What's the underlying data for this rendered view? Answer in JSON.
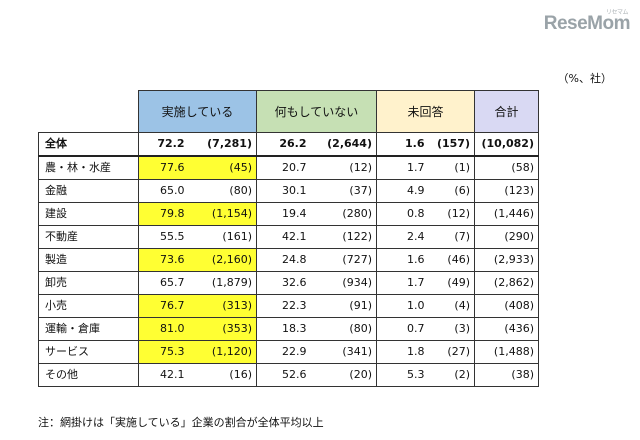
{
  "logo": {
    "main": "ReseMom",
    "sub": "リセマム"
  },
  "unit": "（%、社）",
  "headers": {
    "jisshi": "実施している",
    "nanimo": "何もしていない",
    "mikaito": "未回答",
    "goukei": "合計"
  },
  "rows": [
    {
      "label": "全体",
      "jisshi_pct": "72.2",
      "jisshi_n": "(7,281)",
      "nanimo_pct": "26.2",
      "nanimo_n": "(2,644)",
      "mikaito_pct": "1.6",
      "mikaito_n": "(157)",
      "total": "(10,082)",
      "highlight": false,
      "is_total": true
    },
    {
      "label": "農・林・水産",
      "jisshi_pct": "77.6",
      "jisshi_n": "(45)",
      "nanimo_pct": "20.7",
      "nanimo_n": "(12)",
      "mikaito_pct": "1.7",
      "mikaito_n": "(1)",
      "total": "(58)",
      "highlight": true
    },
    {
      "label": "金融",
      "jisshi_pct": "65.0",
      "jisshi_n": "(80)",
      "nanimo_pct": "30.1",
      "nanimo_n": "(37)",
      "mikaito_pct": "4.9",
      "mikaito_n": "(6)",
      "total": "(123)",
      "highlight": false
    },
    {
      "label": "建設",
      "jisshi_pct": "79.8",
      "jisshi_n": "(1,154)",
      "nanimo_pct": "19.4",
      "nanimo_n": "(280)",
      "mikaito_pct": "0.8",
      "mikaito_n": "(12)",
      "total": "(1,446)",
      "highlight": true
    },
    {
      "label": "不動産",
      "jisshi_pct": "55.5",
      "jisshi_n": "(161)",
      "nanimo_pct": "42.1",
      "nanimo_n": "(122)",
      "mikaito_pct": "2.4",
      "mikaito_n": "(7)",
      "total": "(290)",
      "highlight": false
    },
    {
      "label": "製造",
      "jisshi_pct": "73.6",
      "jisshi_n": "(2,160)",
      "nanimo_pct": "24.8",
      "nanimo_n": "(727)",
      "mikaito_pct": "1.6",
      "mikaito_n": "(46)",
      "total": "(2,933)",
      "highlight": true
    },
    {
      "label": "卸売",
      "jisshi_pct": "65.7",
      "jisshi_n": "(1,879)",
      "nanimo_pct": "32.6",
      "nanimo_n": "(934)",
      "mikaito_pct": "1.7",
      "mikaito_n": "(49)",
      "total": "(2,862)",
      "highlight": false
    },
    {
      "label": "小売",
      "jisshi_pct": "76.7",
      "jisshi_n": "(313)",
      "nanimo_pct": "22.3",
      "nanimo_n": "(91)",
      "mikaito_pct": "1.0",
      "mikaito_n": "(4)",
      "total": "(408)",
      "highlight": true
    },
    {
      "label": "運輸・倉庫",
      "jisshi_pct": "81.0",
      "jisshi_n": "(353)",
      "nanimo_pct": "18.3",
      "nanimo_n": "(80)",
      "mikaito_pct": "0.7",
      "mikaito_n": "(3)",
      "total": "(436)",
      "highlight": true
    },
    {
      "label": "サービス",
      "jisshi_pct": "75.3",
      "jisshi_n": "(1,120)",
      "nanimo_pct": "22.9",
      "nanimo_n": "(341)",
      "mikaito_pct": "1.8",
      "mikaito_n": "(27)",
      "total": "(1,488)",
      "highlight": true
    },
    {
      "label": "その他",
      "jisshi_pct": "42.1",
      "jisshi_n": "(16)",
      "nanimo_pct": "52.6",
      "nanimo_n": "(20)",
      "mikaito_pct": "5.3",
      "mikaito_n": "(2)",
      "total": "(38)",
      "highlight": false
    }
  ],
  "note": "注：網掛けは「実施している」企業の割合が全体平均以上",
  "colors": {
    "jisshi_header": "#9cc3e6",
    "nanimo_header": "#c6e0b4",
    "mikaito_header": "#fff2cc",
    "goukei_header": "#d9d9f3",
    "highlight": "#ffff33"
  }
}
